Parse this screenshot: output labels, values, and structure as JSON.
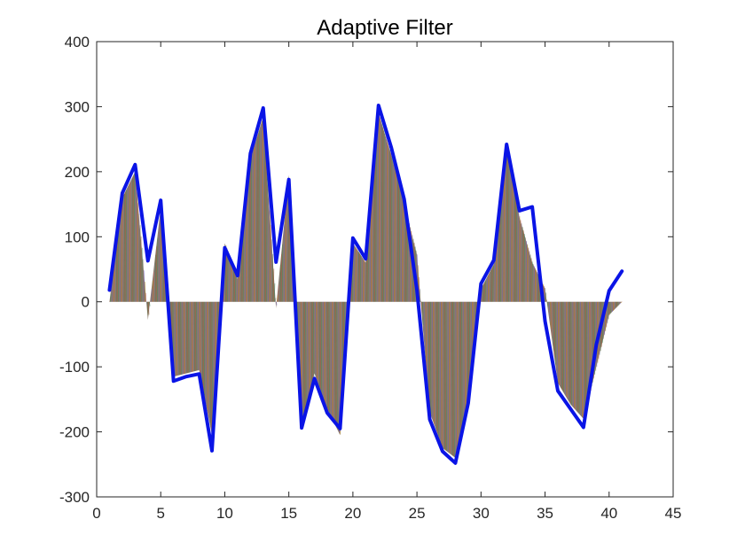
{
  "chart_data": {
    "type": "line",
    "title": "Adaptive Filter",
    "xlabel": "",
    "ylabel": "",
    "xlim": [
      0,
      45
    ],
    "ylim": [
      -300,
      400
    ],
    "x_ticks": [
      0,
      5,
      10,
      15,
      20,
      25,
      30,
      35,
      40,
      45
    ],
    "y_ticks": [
      -300,
      -200,
      -100,
      0,
      100,
      200,
      300,
      400
    ],
    "grid": false,
    "legend": "none",
    "line_color": "#0a14e6",
    "fill_palette": [
      "#a0522d",
      "#2e8b57",
      "#8b7d6b",
      "#6a5acd",
      "#b8860b",
      "#cd5c5c",
      "#708090",
      "#556b2f"
    ],
    "x": [
      1,
      2,
      3,
      4,
      5,
      6,
      7,
      8,
      9,
      10,
      11,
      12,
      13,
      14,
      15,
      16,
      17,
      18,
      19,
      20,
      21,
      22,
      23,
      24,
      25,
      26,
      27,
      28,
      29,
      30,
      31,
      32,
      33,
      34,
      35,
      36,
      37,
      38,
      39,
      40,
      41
    ],
    "series": [
      {
        "values": [
          18,
          167,
          211,
          63,
          156,
          -122,
          -115,
          -111,
          -229,
          83,
          40,
          228,
          298,
          61,
          188,
          -194,
          -118,
          -171,
          -195,
          98,
          66,
          302,
          237,
          158,
          18,
          -181,
          -230,
          -248,
          -156,
          28,
          64,
          242,
          140,
          146,
          -30,
          -137,
          -165,
          -193,
          -66,
          17,
          47
        ]
      }
    ],
    "filled_bands": {
      "x": [
        1,
        2,
        3,
        4,
        5,
        6,
        7,
        8,
        9,
        10,
        11,
        12,
        13,
        14,
        15,
        16,
        17,
        18,
        19,
        20,
        21,
        22,
        23,
        24,
        25,
        26,
        27,
        28,
        29,
        30,
        31,
        32,
        33,
        34,
        35,
        36,
        37,
        38,
        39,
        40,
        41
      ],
      "values": [
        0,
        160,
        200,
        -28,
        145,
        -115,
        -110,
        -105,
        -205,
        90,
        35,
        220,
        285,
        -10,
        195,
        -185,
        -110,
        -165,
        -205,
        90,
        60,
        290,
        225,
        150,
        72,
        -170,
        -225,
        -240,
        -150,
        20,
        58,
        232,
        130,
        60,
        20,
        -125,
        -158,
        -180,
        -100,
        -20,
        0
      ]
    }
  }
}
